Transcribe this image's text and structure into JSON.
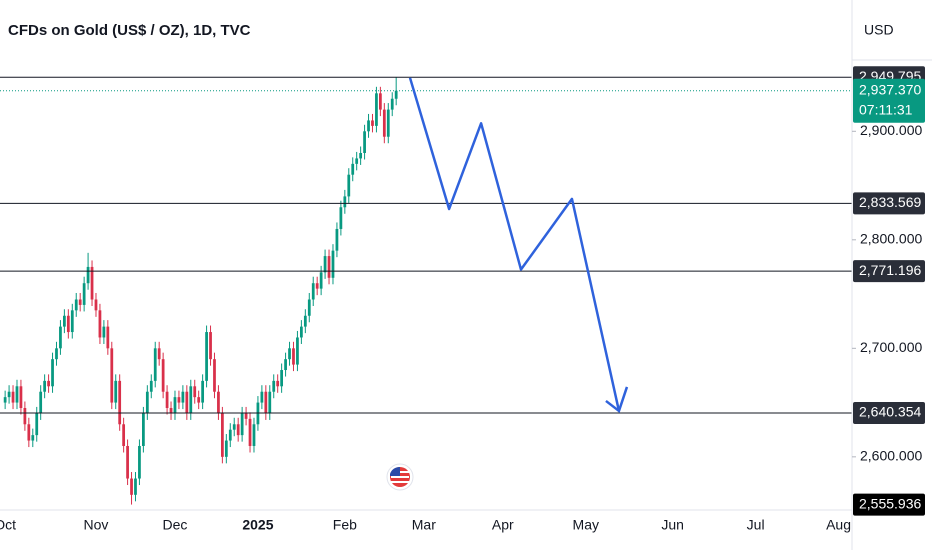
{
  "chart_data": {
    "type": "candlestick",
    "title": "CFDs on Gold (US$ / OZ), 1D, TVC",
    "currency": "USD",
    "up_color": "#089981",
    "down_color": "#d9304a",
    "candles": {
      "open": [
        2650,
        2655,
        2660,
        2650,
        2665,
        2645,
        2630,
        2615,
        2620,
        2640,
        2660,
        2670,
        2665,
        2690,
        2700,
        2720,
        2730,
        2715,
        2735,
        2745,
        2740,
        2760,
        2775,
        2745,
        2735,
        2710,
        2720,
        2700,
        2650,
        2670,
        2630,
        2610,
        2580,
        2565,
        2580,
        2610,
        2640,
        2660,
        2670,
        2700,
        2690,
        2660,
        2645,
        2640,
        2655,
        2650,
        2660,
        2640,
        2665,
        2655,
        2650,
        2670,
        2715,
        2690,
        2660,
        2640,
        2600,
        2615,
        2625,
        2630,
        2620,
        2640,
        2635,
        2610,
        2630,
        2650,
        2660,
        2640,
        2660,
        2670,
        2665,
        2680,
        2690,
        2700,
        2685,
        2710,
        2720,
        2730,
        2745,
        2760,
        2755,
        2770,
        2785,
        2765,
        2790,
        2810,
        2830,
        2840,
        2860,
        2870,
        2875,
        2880,
        2900,
        2910,
        2905,
        2935,
        2920,
        2895,
        2920,
        2930
      ],
      "high": [
        2661,
        2666,
        2666,
        2671,
        2671,
        2651,
        2636,
        2626,
        2646,
        2666,
        2676,
        2676,
        2696,
        2706,
        2726,
        2736,
        2736,
        2741,
        2751,
        2751,
        2766,
        2788,
        2781,
        2751,
        2741,
        2726,
        2726,
        2706,
        2676,
        2676,
        2636,
        2616,
        2586,
        2586,
        2616,
        2646,
        2666,
        2676,
        2706,
        2706,
        2696,
        2666,
        2651,
        2661,
        2661,
        2666,
        2666,
        2671,
        2671,
        2661,
        2676,
        2721,
        2721,
        2696,
        2666,
        2646,
        2621,
        2631,
        2636,
        2636,
        2646,
        2646,
        2641,
        2636,
        2656,
        2666,
        2666,
        2666,
        2676,
        2676,
        2686,
        2696,
        2706,
        2706,
        2716,
        2726,
        2736,
        2751,
        2766,
        2766,
        2776,
        2791,
        2791,
        2796,
        2816,
        2836,
        2846,
        2866,
        2876,
        2881,
        2886,
        2906,
        2916,
        2916,
        2941,
        2941,
        2926,
        2926,
        2936,
        2950
      ],
      "low": [
        2644,
        2649,
        2644,
        2644,
        2639,
        2624,
        2609,
        2609,
        2614,
        2634,
        2654,
        2659,
        2659,
        2684,
        2694,
        2714,
        2709,
        2709,
        2729,
        2734,
        2734,
        2754,
        2739,
        2729,
        2704,
        2704,
        2694,
        2644,
        2644,
        2624,
        2604,
        2574,
        2556,
        2559,
        2574,
        2604,
        2634,
        2654,
        2664,
        2684,
        2654,
        2639,
        2634,
        2634,
        2644,
        2644,
        2634,
        2634,
        2649,
        2644,
        2644,
        2664,
        2684,
        2654,
        2634,
        2594,
        2594,
        2609,
        2619,
        2614,
        2614,
        2629,
        2604,
        2604,
        2624,
        2644,
        2634,
        2634,
        2654,
        2659,
        2659,
        2674,
        2684,
        2679,
        2679,
        2704,
        2714,
        2724,
        2739,
        2749,
        2749,
        2764,
        2759,
        2759,
        2784,
        2804,
        2824,
        2834,
        2854,
        2864,
        2869,
        2874,
        2894,
        2899,
        2899,
        2914,
        2889,
        2889,
        2914,
        2924
      ],
      "close": [
        2655,
        2660,
        2650,
        2665,
        2645,
        2630,
        2615,
        2620,
        2640,
        2660,
        2670,
        2665,
        2690,
        2700,
        2720,
        2730,
        2715,
        2735,
        2745,
        2740,
        2760,
        2775,
        2745,
        2735,
        2710,
        2720,
        2700,
        2650,
        2670,
        2630,
        2610,
        2580,
        2565,
        2580,
        2610,
        2640,
        2660,
        2670,
        2700,
        2690,
        2660,
        2645,
        2640,
        2655,
        2650,
        2660,
        2640,
        2665,
        2655,
        2650,
        2670,
        2715,
        2690,
        2660,
        2640,
        2600,
        2615,
        2625,
        2630,
        2620,
        2640,
        2635,
        2610,
        2630,
        2650,
        2660,
        2640,
        2660,
        2670,
        2665,
        2680,
        2690,
        2700,
        2685,
        2710,
        2720,
        2730,
        2745,
        2760,
        2755,
        2770,
        2785,
        2765,
        2790,
        2810,
        2830,
        2840,
        2860,
        2870,
        2875,
        2880,
        2900,
        2910,
        2905,
        2935,
        2920,
        2895,
        2920,
        2930,
        2937.37
      ]
    },
    "xlim": [
      -1.3,
      214.4
    ],
    "xticks": [
      {
        "value": 0,
        "label": "Oct"
      },
      {
        "value": 23,
        "label": "Nov"
      },
      {
        "value": 43,
        "label": "Dec"
      },
      {
        "value": 64,
        "label": "2025"
      },
      {
        "value": 86,
        "label": "Feb"
      },
      {
        "value": 106,
        "label": "Mar"
      },
      {
        "value": 126,
        "label": "Apr"
      },
      {
        "value": 147,
        "label": "May"
      },
      {
        "value": 169,
        "label": "Jun"
      },
      {
        "value": 190,
        "label": "Jul"
      },
      {
        "value": 211,
        "label": "Aug"
      }
    ],
    "ylim": [
      2551,
      3021
    ],
    "yticks": [
      {
        "value": 2600,
        "label": "2,600.000"
      },
      {
        "value": 2700,
        "label": "2,700.000"
      },
      {
        "value": 2800,
        "label": "2,800.000"
      },
      {
        "value": 2900,
        "label": "2,900.000"
      }
    ],
    "levels": [
      {
        "value": 2949.795,
        "label": "2,949.795"
      },
      {
        "value": 2833.569,
        "label": "2,833.569"
      },
      {
        "value": 2771.196,
        "label": "2,771.196"
      },
      {
        "value": 2640.354,
        "label": "2,640.354"
      }
    ],
    "last_price": {
      "value": 2937.37,
      "label": "2,937.370",
      "countdown": "07:11:31",
      "color": "#089981"
    },
    "low_marker": {
      "value": 2555.936,
      "label": "2,555.936"
    },
    "projection": {
      "color": "#2f62dc",
      "x": [
        102.5,
        112.4,
        120.5,
        130.6,
        143.5,
        155.4
      ],
      "y": [
        2949.3,
        2828.4,
        2907.4,
        2772.6,
        2837.7,
        2642.3
      ]
    }
  }
}
